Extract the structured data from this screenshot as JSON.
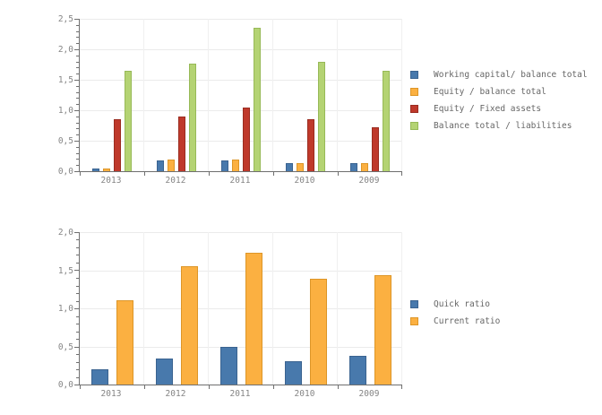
{
  "page": {
    "background": "#ffffff",
    "decimal_separator": ","
  },
  "chart_data": [
    {
      "name": "solvency-ratios",
      "type": "bar",
      "title": "",
      "xlabel": "",
      "ylabel": "",
      "categories": [
        "2013",
        "2012",
        "2011",
        "2010",
        "2009"
      ],
      "series": [
        {
          "name": "Working capital/ balance total",
          "color": "#4879ac",
          "border_color": "#3a6390",
          "values": [
            0.04,
            0.18,
            0.18,
            0.13,
            0.13
          ]
        },
        {
          "name": "Equity / balance total",
          "color": "#fbb041",
          "border_color": "#dd9628",
          "values": [
            0.04,
            0.19,
            0.19,
            0.13,
            0.13
          ]
        },
        {
          "name": "Equity / Fixed assets",
          "color": "#bf392b",
          "border_color": "#9a2c20",
          "values": [
            0.85,
            0.9,
            1.04,
            0.86,
            0.72
          ]
        },
        {
          "name": "Balance total / liabilities",
          "color": "#b4d373",
          "border_color": "#97b957",
          "values": [
            1.64,
            1.77,
            2.36,
            1.8,
            1.64
          ]
        }
      ],
      "ylim": [
        0,
        2.5
      ],
      "ytick_step": 0.5,
      "ytick_minor_step": 0.1,
      "ytick_labels": [
        "0,0",
        "0,5",
        "1,0",
        "1,5",
        "2,0",
        "2,5"
      ],
      "grid": true,
      "legend_position": "right"
    },
    {
      "name": "liquidity-ratios",
      "type": "bar",
      "title": "",
      "xlabel": "",
      "ylabel": "",
      "categories": [
        "2013",
        "2012",
        "2011",
        "2010",
        "2009"
      ],
      "series": [
        {
          "name": "Quick ratio",
          "color": "#4879ac",
          "border_color": "#3a6390",
          "values": [
            0.2,
            0.34,
            0.49,
            0.3,
            0.38
          ]
        },
        {
          "name": "Current ratio",
          "color": "#fbb041",
          "border_color": "#dd9628",
          "values": [
            1.1,
            1.55,
            1.73,
            1.39,
            1.43
          ]
        }
      ],
      "ylim": [
        0,
        2.0
      ],
      "ytick_step": 0.5,
      "ytick_minor_step": 0.1,
      "ytick_labels": [
        "0,0",
        "0,5",
        "1,0",
        "1,5",
        "2,0"
      ],
      "grid": true,
      "legend_position": "right"
    }
  ]
}
